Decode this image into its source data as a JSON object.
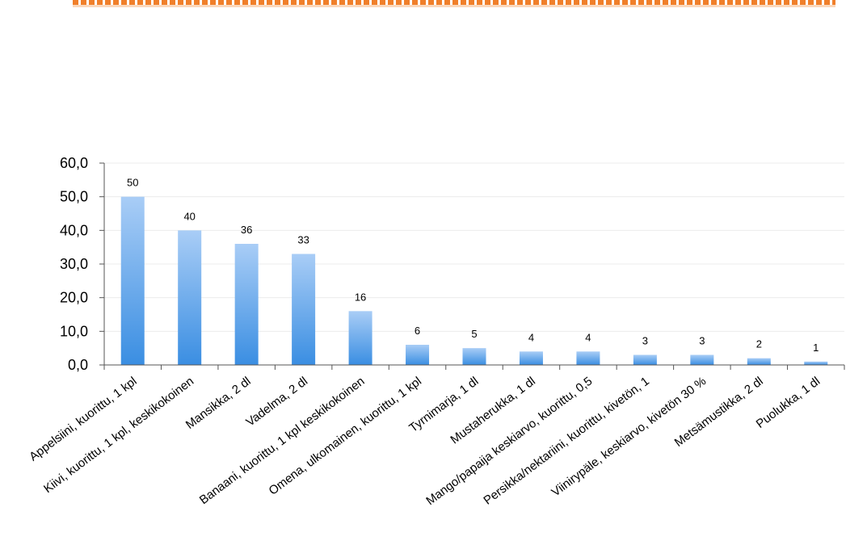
{
  "colors": {
    "accent_border": "#f07f2a",
    "bar_top": "#a9cdf6",
    "bar_bottom": "#3a8ee2",
    "axis": "#555555",
    "grid": "#ececec"
  },
  "chart_data": {
    "type": "bar",
    "title": "",
    "xlabel": "",
    "ylabel": "",
    "ylim": [
      0,
      60
    ],
    "yticks": [
      "0,0",
      "10,0",
      "20,0",
      "30,0",
      "40,0",
      "50,0",
      "60,0"
    ],
    "grid": true,
    "categories": [
      "Appelsiini, kuorittu, 1 kpl",
      "Kiivi, kuorittu, 1 kpl, keskikokoinen",
      "Mansikka, 2 dl",
      "Vadelma, 2 dl",
      "Banaani, kuorittu, 1 kpl keskikokoinen",
      "Omena, ulkomainen, kuorittu, 1 kpl",
      "Tyrnimarja, 1 dl",
      "Mustaherukka, 1 dl",
      "Mango/papaija keskiarvo, kuorittu, 0,5",
      "Persikka/nektariini, kuorittu, kivetön, 1",
      "Viinirypäle, keskiarvo, kivetön 30 %",
      "Metsämustikka, 2 dl",
      "Puolukka, 1 dl"
    ],
    "values": [
      50,
      40,
      36,
      33,
      16,
      6,
      5,
      4,
      4,
      3,
      3,
      2,
      1
    ],
    "value_labels": [
      "50",
      "40",
      "36",
      "33",
      "16",
      "6",
      "5",
      "4",
      "4",
      "3",
      "3",
      "2",
      "1"
    ]
  }
}
